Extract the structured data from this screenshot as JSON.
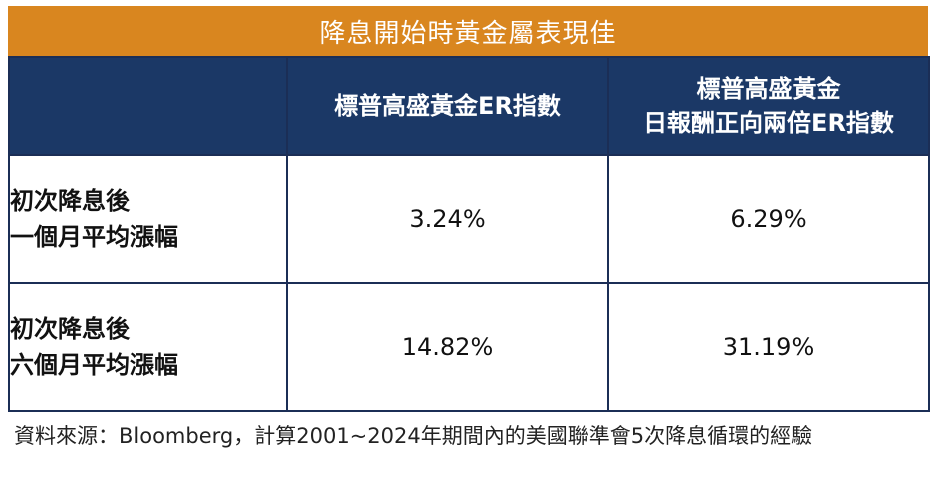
{
  "title": "降息開始時黃金屬表現佳",
  "chart_data": {
    "type": "table",
    "columns": [
      {
        "lines": [
          "標普高盛黃金ER指數"
        ]
      },
      {
        "lines": [
          "標普高盛黃金",
          "日報酬正向兩倍ER指數"
        ]
      }
    ],
    "rows": [
      {
        "label_lines": [
          "初次降息後",
          "一個月平均漲幅"
        ],
        "values": [
          "3.24%",
          "6.29%"
        ]
      },
      {
        "label_lines": [
          "初次降息後",
          "六個月平均漲幅"
        ],
        "values": [
          "14.82%",
          "31.19%"
        ]
      }
    ]
  },
  "source": "資料來源：Bloomberg，計算2001~2024年期間內的美國聯準會5次降息循環的經驗",
  "colors": {
    "title_bg": "#D9861F",
    "header_bg": "#1B3866",
    "border": "#1B2E56"
  }
}
